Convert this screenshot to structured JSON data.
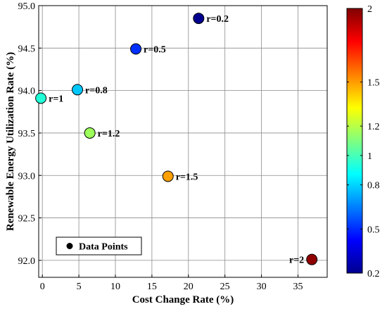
{
  "chart_data": {
    "type": "scatter",
    "xlabel": "Cost Change Rate (%)",
    "ylabel": "Renewable Energy Utilization Rate (%)",
    "xlim": [
      -0.5,
      39
    ],
    "ylim": [
      91.8,
      95.0
    ],
    "x_ticks": [
      "0",
      "5",
      "10",
      "15",
      "20",
      "25",
      "30",
      "35"
    ],
    "y_ticks": [
      "92.0",
      "92.5",
      "93.0",
      "93.5",
      "94.0",
      "94.5",
      "95.0"
    ],
    "grid": true,
    "legend": {
      "label": "Data Points",
      "placement": "bottom-left"
    },
    "colorbar": {
      "colormap": "jet",
      "range": [
        0.2,
        2
      ],
      "tick_labels": [
        "0.2",
        "0.5",
        "0.8",
        "1",
        "1.2",
        "1.5",
        "2"
      ]
    },
    "points": [
      {
        "x": 21.4,
        "y": 94.85,
        "r": 0.2,
        "label": "r=0.2",
        "color": "#00008f"
      },
      {
        "x": 12.8,
        "y": 94.49,
        "r": 0.5,
        "label": "r=0.5",
        "color": "#0030ff"
      },
      {
        "x": 4.8,
        "y": 94.01,
        "r": 0.8,
        "label": "r=0.8",
        "color": "#00c8ff"
      },
      {
        "x": -0.2,
        "y": 93.91,
        "r": 1,
        "label": "r=1",
        "color": "#20ffd8"
      },
      {
        "x": 6.5,
        "y": 93.5,
        "r": 1.2,
        "label": "r=1.2",
        "color": "#9cff5a"
      },
      {
        "x": 17.2,
        "y": 92.99,
        "r": 1.5,
        "label": "r=1.5",
        "color": "#ffa000"
      },
      {
        "x": 36.9,
        "y": 92.01,
        "r": 2,
        "label": "r=2",
        "color": "#8f0000"
      }
    ]
  }
}
